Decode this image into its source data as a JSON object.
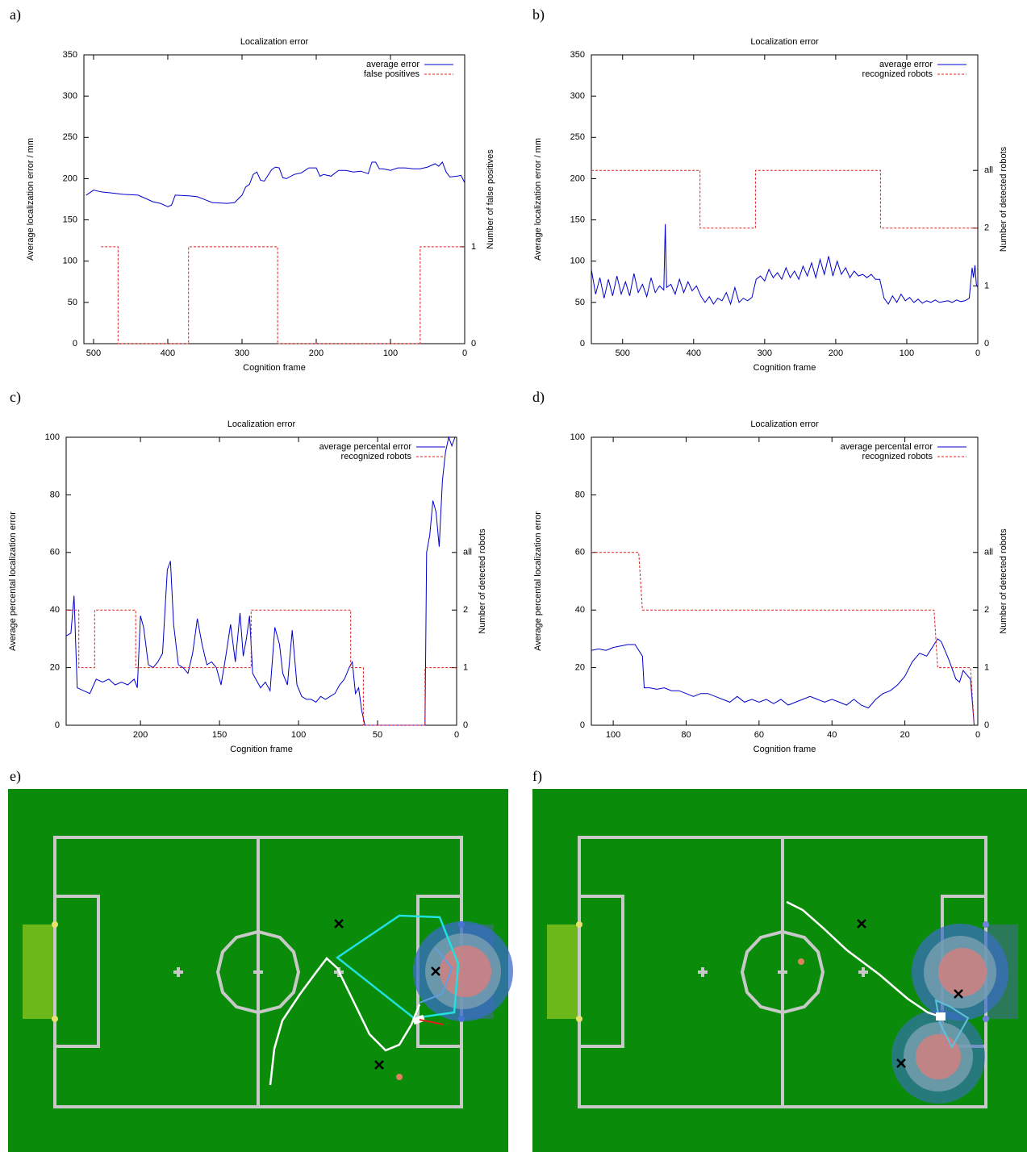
{
  "panel_labels": [
    "a)",
    "b)",
    "c)",
    "d)",
    "e)",
    "f)"
  ],
  "chart_data": [
    {
      "type": "line",
      "title": "Localization error",
      "xlabel": "Cognition frame",
      "ylabel": "Average localization error / mm",
      "y2label": "Number of false positives",
      "xlim": [
        513,
        0
      ],
      "xticks": [
        500,
        400,
        300,
        200,
        100,
        0
      ],
      "ylim": [
        0,
        350
      ],
      "yticks": [
        0,
        50,
        100,
        150,
        200,
        250,
        300,
        350
      ],
      "y2lim": [
        0,
        2.98
      ],
      "y2ticks": [
        0,
        1
      ],
      "legend": "upper right",
      "series": [
        {
          "name": "average error",
          "color": "#0000cc",
          "line_style": "solid",
          "x": [
            510,
            500,
            490,
            480,
            460,
            440,
            420,
            410,
            400,
            395,
            390,
            370,
            360,
            340,
            320,
            310,
            300,
            295,
            290,
            285,
            280,
            275,
            270,
            260,
            255,
            250,
            245,
            240,
            230,
            220,
            210,
            200,
            195,
            190,
            180,
            170,
            160,
            150,
            140,
            130,
            125,
            120,
            115,
            110,
            100,
            90,
            80,
            70,
            60,
            50,
            40,
            35,
            30,
            25,
            20,
            10,
            5,
            0
          ],
          "values": [
            180,
            186,
            184,
            183,
            181,
            180,
            172,
            170,
            166,
            168,
            180,
            179,
            178,
            171,
            170,
            171,
            180,
            190,
            193,
            205,
            208,
            198,
            197,
            211,
            214,
            213,
            201,
            200,
            205,
            207,
            213,
            213,
            203,
            205,
            203,
            210,
            210,
            208,
            209,
            206,
            220,
            220,
            212,
            212,
            210,
            213,
            213,
            212,
            212,
            214,
            218,
            215,
            220,
            208,
            202,
            203,
            204,
            195
          ]
        },
        {
          "name": "false positives",
          "color": "#e02020",
          "line_style": "dashed",
          "axis": "y2",
          "x": [
            490,
            467,
            467,
            372,
            372,
            252,
            252,
            60,
            60,
            0
          ],
          "values": [
            1,
            1,
            0,
            0,
            1,
            1,
            0,
            0,
            1,
            1
          ]
        }
      ]
    },
    {
      "type": "line",
      "title": "Localization error",
      "xlabel": "Cognition frame",
      "ylabel": "Average localization error / mm",
      "y2label": "Number of detected robots",
      "xlim": [
        544,
        0
      ],
      "xticks": [
        500,
        400,
        300,
        200,
        100,
        0
      ],
      "ylim": [
        0,
        350
      ],
      "yticks": [
        0,
        50,
        100,
        150,
        200,
        250,
        300,
        350
      ],
      "y2lim": [
        0,
        5
      ],
      "y2ticks": [
        0,
        1,
        2,
        {
          "value": 3,
          "label": "all"
        }
      ],
      "legend": "upper right",
      "series": [
        {
          "name": "average error",
          "color": "#0000cc",
          "line_style": "solid",
          "x": [
            544,
            538,
            532,
            526,
            520,
            514,
            508,
            502,
            496,
            490,
            484,
            478,
            472,
            466,
            460,
            454,
            448,
            442,
            440,
            438,
            432,
            426,
            420,
            414,
            408,
            402,
            396,
            390,
            384,
            378,
            372,
            366,
            360,
            354,
            348,
            342,
            336,
            330,
            324,
            318,
            312,
            306,
            300,
            294,
            288,
            282,
            276,
            270,
            264,
            258,
            252,
            246,
            240,
            234,
            228,
            222,
            216,
            210,
            204,
            198,
            192,
            186,
            180,
            174,
            168,
            162,
            156,
            150,
            144,
            138,
            132,
            126,
            120,
            114,
            108,
            102,
            96,
            90,
            84,
            78,
            72,
            66,
            60,
            54,
            48,
            42,
            36,
            30,
            24,
            18,
            12,
            8,
            6,
            4,
            2,
            0
          ],
          "values": [
            90,
            60,
            80,
            55,
            78,
            58,
            82,
            60,
            75,
            58,
            85,
            62,
            72,
            57,
            80,
            62,
            70,
            65,
            145,
            68,
            72,
            60,
            78,
            62,
            75,
            64,
            70,
            58,
            50,
            57,
            48,
            55,
            52,
            62,
            48,
            68,
            50,
            55,
            52,
            56,
            78,
            82,
            76,
            90,
            80,
            86,
            78,
            92,
            80,
            88,
            78,
            94,
            82,
            98,
            80,
            102,
            84,
            106,
            82,
            100,
            84,
            92,
            80,
            88,
            82,
            84,
            80,
            84,
            78,
            78,
            55,
            48,
            58,
            50,
            60,
            52,
            56,
            50,
            54,
            49,
            52,
            50,
            53,
            50,
            51,
            52,
            50,
            53,
            51,
            52,
            55,
            92,
            80,
            95,
            72,
            68
          ]
        },
        {
          "name": "recognized robots",
          "color": "#e02020",
          "line_style": "dashed",
          "axis": "y2",
          "x": [
            544,
            391,
            391,
            313,
            313,
            137,
            137,
            0
          ],
          "values": [
            3,
            3,
            2,
            2,
            3,
            3,
            2,
            2
          ]
        }
      ]
    },
    {
      "type": "line",
      "title": "Localization error",
      "xlabel": "Cognition frame",
      "ylabel": "Average percental localization error",
      "y2label": "Number of detected robots",
      "xlim": [
        247,
        0
      ],
      "xticks": [
        200,
        150,
        100,
        50,
        0
      ],
      "ylim": [
        0,
        100
      ],
      "yticks": [
        0,
        20,
        40,
        60,
        80,
        100
      ],
      "y2lim": [
        0,
        5
      ],
      "y2ticks": [
        0,
        1,
        2,
        {
          "value": 3,
          "label": "all"
        }
      ],
      "legend": "upper right",
      "series": [
        {
          "name": "average percental error",
          "color": "#0000cc",
          "line_style": "solid",
          "x": [
            247,
            244,
            242,
            240,
            236,
            232,
            228,
            224,
            220,
            216,
            212,
            208,
            204,
            202,
            200,
            198,
            195,
            192,
            189,
            186,
            183,
            181,
            179,
            176,
            173,
            170,
            167,
            164,
            161,
            158,
            155,
            152,
            149,
            146,
            143,
            140,
            137,
            135,
            133,
            131,
            129,
            127,
            124,
            121,
            118,
            115,
            112,
            110,
            107,
            104,
            101,
            98,
            95,
            92,
            89,
            86,
            83,
            80,
            77,
            74,
            71,
            68,
            66,
            64,
            62,
            60,
            58,
            56,
            50,
            40,
            30,
            22,
            20,
            19,
            17,
            15,
            13,
            11,
            9,
            7,
            5,
            3,
            1
          ],
          "values": [
            31,
            32,
            45,
            13,
            12,
            11,
            16,
            15,
            16,
            14,
            15,
            14,
            16,
            13,
            38,
            34,
            21,
            20,
            22,
            25,
            54,
            57,
            35,
            21,
            20,
            18,
            25,
            37,
            28,
            21,
            22,
            20,
            14,
            24,
            35,
            22,
            39,
            24,
            30,
            38,
            18,
            16,
            13,
            15,
            12,
            34,
            28,
            18,
            14,
            33,
            14,
            10,
            9,
            9,
            8,
            10,
            9,
            10,
            11,
            14,
            16,
            20,
            22,
            11,
            13,
            5,
            0,
            0,
            0,
            0,
            0,
            0,
            0,
            60,
            66,
            78,
            74,
            62,
            85,
            95,
            100,
            97,
            100
          ]
        },
        {
          "name": "recognized robots",
          "color": "#e02020",
          "line_style": "dashed",
          "axis": "y2",
          "x": [
            247,
            239,
            239,
            229,
            229,
            203,
            203,
            130,
            130,
            67,
            67,
            59,
            59,
            20,
            20,
            0
          ],
          "values": [
            2,
            2,
            1,
            1,
            2,
            2,
            1,
            1,
            2,
            2,
            1,
            1,
            0,
            0,
            1,
            1
          ]
        }
      ]
    },
    {
      "type": "line",
      "title": "Localization error",
      "xlabel": "Cognition frame",
      "ylabel": "Average percental localization error",
      "y2label": "Number of detected robots",
      "xlim": [
        106,
        0
      ],
      "xticks": [
        100,
        80,
        60,
        40,
        20,
        0
      ],
      "ylim": [
        0,
        100
      ],
      "yticks": [
        0,
        20,
        40,
        60,
        80,
        100
      ],
      "y2lim": [
        0,
        5
      ],
      "y2ticks": [
        0,
        1,
        2,
        {
          "value": 3,
          "label": "all"
        }
      ],
      "legend": "upper right",
      "series": [
        {
          "name": "average percental error",
          "color": "#0000cc",
          "line_style": "solid",
          "x": [
            106,
            104,
            102,
            100,
            98,
            96,
            94,
            92,
            91.5,
            90,
            88,
            86,
            84,
            82,
            80,
            78,
            76,
            74,
            72,
            70,
            68,
            66,
            64,
            62,
            60,
            58,
            56,
            54,
            52,
            50,
            48,
            46,
            44,
            42,
            40,
            38,
            36,
            34,
            32,
            30,
            28,
            26,
            24,
            22,
            20,
            18,
            16,
            14,
            12,
            11,
            10,
            8,
            6,
            5,
            4,
            2,
            1
          ],
          "values": [
            26,
            26.5,
            26,
            27,
            27.5,
            28,
            28,
            24,
            13,
            13,
            12.5,
            13,
            12,
            12,
            11,
            10,
            11,
            11,
            10,
            9,
            8,
            10,
            8,
            9,
            8,
            9,
            7.5,
            9,
            7,
            8,
            9,
            10,
            9,
            8,
            9,
            8,
            7,
            9,
            7,
            6,
            9,
            11,
            12,
            14,
            17,
            22,
            25,
            24,
            28,
            30,
            29,
            23,
            16,
            15,
            19,
            16,
            0
          ]
        },
        {
          "name": "recognized robots",
          "color": "#e02020",
          "line_style": "dashed",
          "axis": "y2",
          "x": [
            106,
            93,
            92,
            12,
            11,
            2,
            1
          ],
          "values": [
            3,
            3,
            2,
            2,
            1,
            1,
            0
          ]
        }
      ]
    }
  ]
}
